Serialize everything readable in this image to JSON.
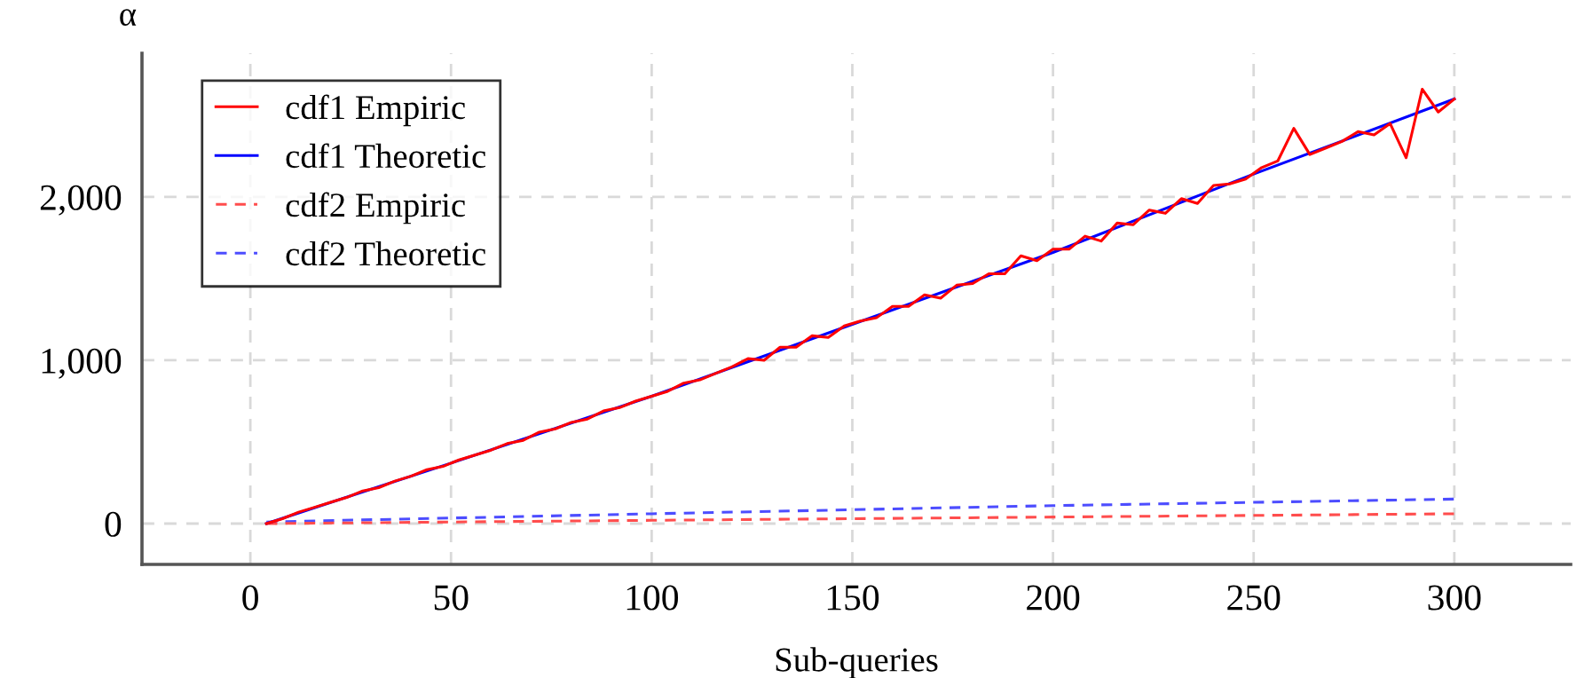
{
  "chart_data": {
    "type": "line",
    "xlabel": "Sub-queries",
    "ylabel": "α",
    "xlim": [
      -27,
      329
    ],
    "ylim": [
      -250,
      2880
    ],
    "xticks": [
      0,
      50,
      100,
      150,
      200,
      250,
      300
    ],
    "yticks": [
      0,
      {
        "value": 1000,
        "label": "1,000"
      },
      {
        "value": 2000,
        "label": "2,000"
      }
    ],
    "grid": true,
    "legend": "top left",
    "marker": "none",
    "series": [
      {
        "name": "cdf1 Empiric",
        "color": "#ff0000",
        "line_style": "solid",
        "x": [
          4,
          8,
          12,
          16,
          20,
          24,
          28,
          32,
          36,
          40,
          44,
          48,
          52,
          56,
          60,
          64,
          68,
          72,
          76,
          80,
          84,
          88,
          92,
          96,
          100,
          104,
          108,
          112,
          116,
          120,
          124,
          128,
          132,
          136,
          140,
          144,
          148,
          152,
          156,
          160,
          164,
          168,
          172,
          176,
          180,
          184,
          188,
          192,
          196,
          200,
          204,
          208,
          212,
          216,
          220,
          224,
          228,
          232,
          236,
          240,
          244,
          248,
          252,
          256,
          260,
          264,
          268,
          272,
          276,
          280,
          284,
          288,
          292,
          296,
          300
        ],
        "values": [
          0,
          30,
          70,
          100,
          130,
          160,
          200,
          220,
          260,
          290,
          330,
          350,
          390,
          420,
          450,
          490,
          510,
          560,
          580,
          620,
          640,
          690,
          710,
          750,
          780,
          810,
          860,
          880,
          920,
          960,
          1010,
          1000,
          1080,
          1080,
          1150,
          1140,
          1210,
          1240,
          1260,
          1330,
          1330,
          1400,
          1380,
          1460,
          1470,
          1530,
          1530,
          1640,
          1610,
          1680,
          1680,
          1760,
          1730,
          1840,
          1830,
          1920,
          1900,
          1990,
          1960,
          2070,
          2080,
          2110,
          2180,
          2220,
          2420,
          2260,
          2300,
          2340,
          2400,
          2380,
          2450,
          2240,
          2660,
          2520,
          2600
        ]
      },
      {
        "name": "cdf1 Theoretic",
        "color": "#0000ff",
        "line_style": "solid",
        "x": [
          4,
          25,
          50,
          100,
          150,
          200,
          250,
          300
        ],
        "values": [
          0,
          170,
          370,
          780,
          1220,
          1660,
          2140,
          2600
        ]
      },
      {
        "name": "cdf2 Empiric",
        "color": "#ff4d4d",
        "line_style": "dashed",
        "x": [
          4,
          100,
          200,
          300
        ],
        "values": [
          0,
          20,
          40,
          60
        ]
      },
      {
        "name": "cdf2 Theoretic",
        "color": "#4d4dff",
        "line_style": "dashed",
        "x": [
          4,
          100,
          200,
          300
        ],
        "values": [
          10,
          60,
          110,
          150
        ]
      }
    ]
  }
}
